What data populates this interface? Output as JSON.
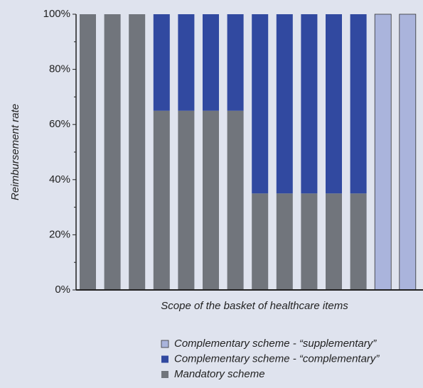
{
  "chart_data": {
    "type": "bar",
    "stacked": true,
    "y_label": "Reimbursement rate",
    "x_label": "Scope of the basket of healthcare items",
    "categories": [
      null,
      null,
      null,
      null,
      null,
      null,
      null,
      null,
      null,
      null,
      null,
      null,
      null,
      null
    ],
    "series": [
      {
        "name": "Mandatory scheme",
        "color": "#71757c",
        "values": [
          100,
          100,
          100,
          65,
          65,
          65,
          65,
          35,
          35,
          35,
          35,
          35,
          0,
          0
        ]
      },
      {
        "name": "Complementary scheme - “complementary”",
        "color": "#3149a0",
        "values": [
          0,
          0,
          0,
          35,
          35,
          35,
          35,
          65,
          65,
          65,
          65,
          65,
          0,
          0
        ]
      },
      {
        "name": "Complementary scheme - “supplementary”",
        "color": "#aab4dc",
        "values": [
          0,
          0,
          0,
          0,
          0,
          0,
          0,
          0,
          0,
          0,
          0,
          0,
          100,
          100
        ]
      }
    ],
    "ylim": [
      0,
      100
    ],
    "yticks": [
      {
        "value": 0,
        "label": "0%"
      },
      {
        "value": 20,
        "label": "20%"
      },
      {
        "value": 40,
        "label": "40%"
      },
      {
        "value": 60,
        "label": "60%"
      },
      {
        "value": 80,
        "label": "80%"
      },
      {
        "value": 100,
        "label": "100%"
      }
    ],
    "minor_yticks": [
      10,
      30,
      50,
      70,
      90
    ],
    "legend": "bottom"
  }
}
